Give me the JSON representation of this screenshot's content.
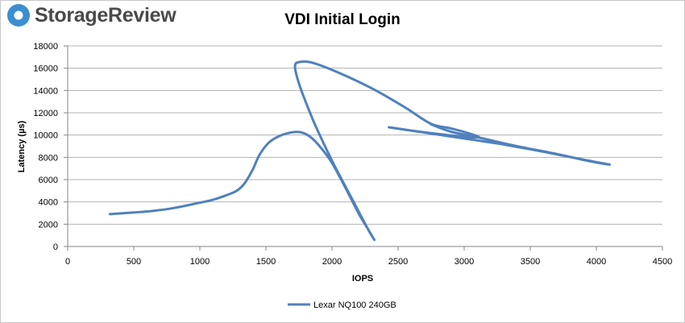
{
  "brand": {
    "name": "StorageReview",
    "icon": "storagereview-logo-icon",
    "color": "#3b8ed0"
  },
  "chart_data": {
    "type": "line",
    "title": "VDI Initial Login",
    "xlabel": "IOPS",
    "ylabel": "Latency (µs)",
    "xlim": [
      0,
      4500
    ],
    "ylim": [
      0,
      18000
    ],
    "x_ticks": [
      0,
      500,
      1000,
      1500,
      2000,
      2500,
      3000,
      3500,
      4000,
      4500
    ],
    "y_ticks": [
      0,
      2000,
      4000,
      6000,
      8000,
      10000,
      12000,
      14000,
      16000,
      18000
    ],
    "grid": "horizontal",
    "legend": "bottom-center",
    "series": [
      {
        "name": "Lexar NQ100 240GB",
        "color": "#4f81bd",
        "points": [
          [
            320,
            2900
          ],
          [
            500,
            3050
          ],
          [
            650,
            3200
          ],
          [
            800,
            3450
          ],
          [
            950,
            3800
          ],
          [
            1100,
            4200
          ],
          [
            1200,
            4600
          ],
          [
            1280,
            5000
          ],
          [
            1340,
            5700
          ],
          [
            1400,
            6900
          ],
          [
            1450,
            8200
          ],
          [
            1520,
            9300
          ],
          [
            1600,
            9900
          ],
          [
            1700,
            10250
          ],
          [
            1780,
            10200
          ],
          [
            1850,
            9700
          ],
          [
            1920,
            8800
          ],
          [
            2000,
            7500
          ],
          [
            2100,
            5300
          ],
          [
            2200,
            3000
          ],
          [
            2270,
            1600
          ],
          [
            2320,
            600
          ],
          [
            2270,
            1600
          ],
          [
            2150,
            4300
          ],
          [
            2000,
            7700
          ],
          [
            1880,
            10700
          ],
          [
            1790,
            13300
          ],
          [
            1740,
            15000
          ],
          [
            1720,
            16200
          ],
          [
            1750,
            16550
          ],
          [
            1850,
            16500
          ],
          [
            2050,
            15600
          ],
          [
            2300,
            14200
          ],
          [
            2550,
            12500
          ],
          [
            2750,
            11000
          ],
          [
            2900,
            10600
          ],
          [
            3050,
            10100
          ],
          [
            3110,
            9800
          ],
          [
            3000,
            9850
          ],
          [
            2800,
            10100
          ],
          [
            2600,
            10400
          ],
          [
            2430,
            10700
          ],
          [
            2600,
            10400
          ],
          [
            2800,
            10050
          ],
          [
            3050,
            9600
          ],
          [
            3300,
            9150
          ],
          [
            3600,
            8500
          ],
          [
            3900,
            7800
          ],
          [
            4100,
            7350
          ],
          [
            3950,
            7650
          ],
          [
            3700,
            8300
          ],
          [
            3400,
            9000
          ],
          [
            3100,
            9800
          ],
          [
            2900,
            10300
          ],
          [
            2750,
            10950
          ]
        ]
      }
    ]
  }
}
